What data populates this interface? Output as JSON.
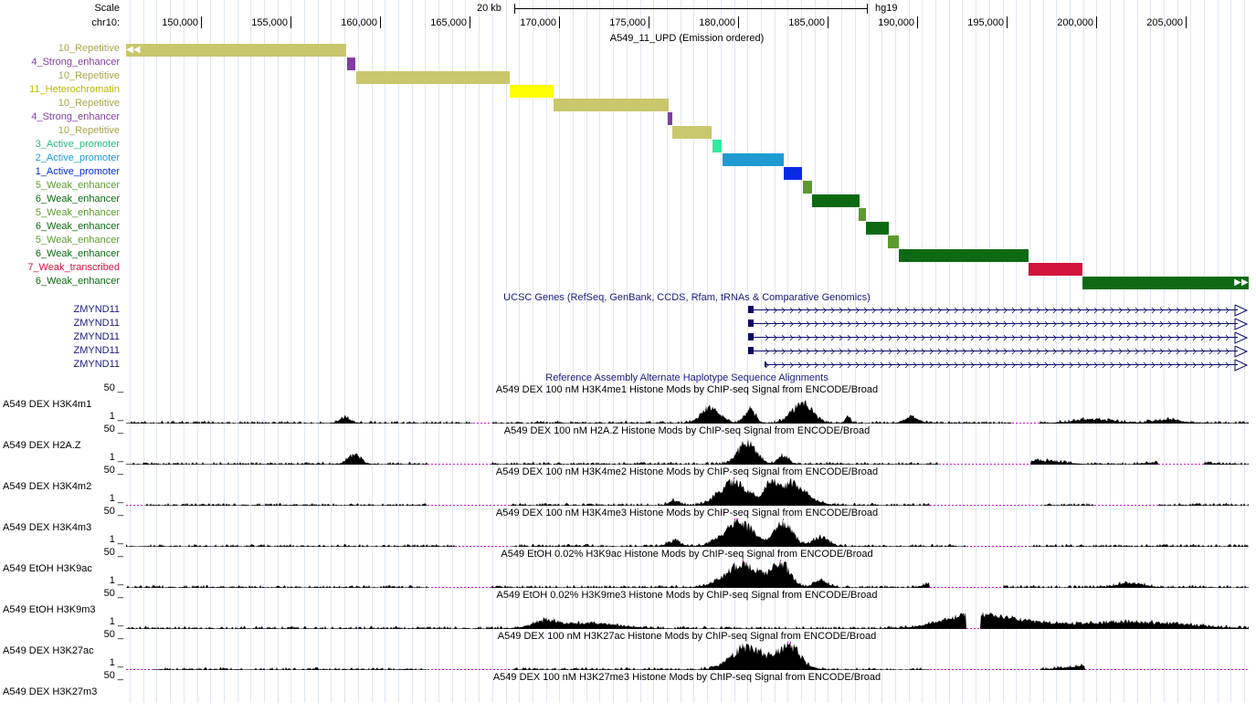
{
  "ruler": {
    "scale_label": "Scale",
    "chrom_label": "chr10:",
    "scale_bar_label": "20 kb",
    "assembly": "hg19",
    "positions": [
      "150,000",
      "155,000",
      "160,000",
      "165,000",
      "170,000",
      "175,000",
      "180,000",
      "185,000",
      "190,000",
      "195,000",
      "200,000",
      "205,000"
    ]
  },
  "segmentation": {
    "title": "A549_11_UPD (Emission ordered)",
    "rows": [
      {
        "label": "10_Repetitive",
        "color": "#c9c76c",
        "text_color": "#a8a64e"
      },
      {
        "label": "4_Strong_enhancer",
        "color": "#7e3fa0",
        "text_color": "#7e3fa0"
      },
      {
        "label": "10_Repetitive",
        "color": "#c9c76c",
        "text_color": "#a8a64e"
      },
      {
        "label": "11_Heterochromatin",
        "color": "#ffff00",
        "text_color": "#b8b800"
      },
      {
        "label": "10_Repetitive",
        "color": "#c9c76c",
        "text_color": "#a8a64e"
      },
      {
        "label": "4_Strong_enhancer",
        "color": "#7e3fa0",
        "text_color": "#7e3fa0"
      },
      {
        "label": "10_Repetitive",
        "color": "#c9c76c",
        "text_color": "#a8a64e"
      },
      {
        "label": "3_Active_promoter",
        "color": "#33e8a0",
        "text_color": "#2ab87f"
      },
      {
        "label": "2_Active_promoter",
        "color": "#1f9bd2",
        "text_color": "#1f9bd2"
      },
      {
        "label": "1_Active_promoter",
        "color": "#0a2be6",
        "text_color": "#0a2be6"
      },
      {
        "label": "5_Weak_enhancer",
        "color": "#5c9a30",
        "text_color": "#5c9a30"
      },
      {
        "label": "6_Weak_enhancer",
        "color": "#0d6a13",
        "text_color": "#0d6a13"
      },
      {
        "label": "5_Weak_enhancer",
        "color": "#5c9a30",
        "text_color": "#5c9a30"
      },
      {
        "label": "6_Weak_enhancer",
        "color": "#0d6a13",
        "text_color": "#0d6a13"
      },
      {
        "label": "5_Weak_enhancer",
        "color": "#5c9a30",
        "text_color": "#5c9a30"
      },
      {
        "label": "6_Weak_enhancer",
        "color": "#0d6a13",
        "text_color": "#0d6a13"
      },
      {
        "label": "7_Weak_transcribed",
        "color": "#d2143c",
        "text_color": "#d2143c"
      },
      {
        "label": "6_Weak_enhancer",
        "color": "#0d6a13",
        "text_color": "#0d6a13"
      }
    ]
  },
  "genes": {
    "title": "UCSC Genes (RefSeq, GenBank, CCDS, Rfam, tRNAs & Comparative Genomics)",
    "items": [
      "ZMYND11",
      "ZMYND11",
      "ZMYND11",
      "ZMYND11",
      "ZMYND11"
    ]
  },
  "alt_haplotype": {
    "title": "Reference Assembly Alternate Haplotype Sequence Alignments"
  },
  "signal_tracks": [
    {
      "label": "A549 DEX H3K4m1",
      "title": "A549 DEX 100 nM H3K4me1 Histone Mods by ChIP-seq Signal from ENCODE/Broad",
      "max": "50",
      "min": "1"
    },
    {
      "label": "A549 DEX H2A.Z",
      "title": "A549 DEX 100 nM H2A.Z Histone Mods by ChIP-seq Signal from ENCODE/Broad",
      "max": "50",
      "min": "1"
    },
    {
      "label": "A549 DEX H3K4m2",
      "title": "A549 DEX 100 nM H3K4me2 Histone Mods by ChIP-seq Signal from ENCODE/Broad",
      "max": "50",
      "min": "1"
    },
    {
      "label": "A549 DEX H3K4m3",
      "title": "A549 DEX 100 nM H3K4me3 Histone Mods by ChIP-seq Signal from ENCODE/Broad",
      "max": "50",
      "min": "1"
    },
    {
      "label": "A549 EtOH H3K9ac",
      "title": "A549 EtOH 0.02% H3K9ac Histone Mods by ChIP-seq Signal from ENCODE/Broad",
      "max": "50",
      "min": "1"
    },
    {
      "label": "A549 EtOH H3K9m3",
      "title": "A549 EtOH 0.02% H3K9me3 Histone Mods by ChIP-seq Signal from ENCODE/Broad",
      "max": "50",
      "min": "1"
    },
    {
      "label": "A549 DEX H3K27ac",
      "title": "A549 DEX 100 nM H3K27ac Histone Mods by ChIP-seq Signal from ENCODE/Broad",
      "max": "50",
      "min": "1"
    },
    {
      "label": "A549 DEX H3K27m3",
      "title": "A549 DEX 100 nM H3K27me3 Histone Mods by ChIP-seq Signal from ENCODE/Broad",
      "max": "50",
      "min": ""
    }
  ],
  "colors": {
    "gridline": "#dfe6f2",
    "gene": "#0a0a6a",
    "signal": "#000000",
    "clipped": "#d214d2"
  }
}
